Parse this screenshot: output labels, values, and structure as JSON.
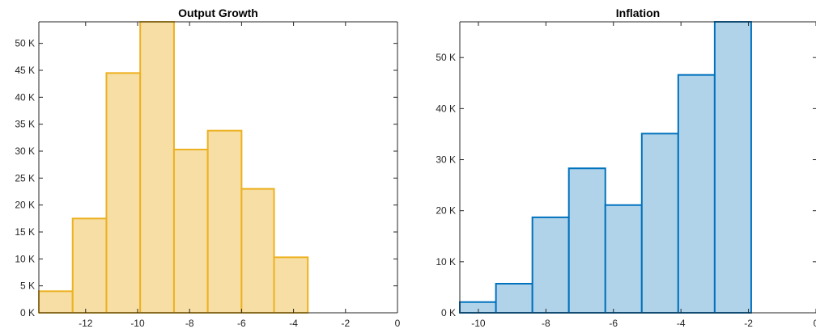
{
  "chart_data": [
    {
      "type": "bar",
      "title": "Output Growth",
      "xlabel": "",
      "ylabel": "",
      "xlim": [
        -13.8,
        0
      ],
      "ylim": [
        0,
        54000
      ],
      "xticks": [
        -12,
        -10,
        -8,
        -6,
        -4,
        -2,
        0
      ],
      "xtick_labels": [
        "-12",
        "-10",
        "-8",
        "-6",
        "-4",
        "-2",
        "0"
      ],
      "yticks": [
        0,
        5000,
        10000,
        15000,
        20000,
        25000,
        30000,
        35000,
        40000,
        45000,
        50000
      ],
      "ytick_labels": [
        "0 K",
        "5 K",
        "10 K",
        "15 K",
        "20 K",
        "25 K",
        "30 K",
        "35 K",
        "40 K",
        "45 K",
        "50 K"
      ],
      "bin_edges": [
        -13.8,
        -12.5,
        -11.2,
        -9.9,
        -8.6,
        -7.3,
        -6.0,
        -4.75,
        -3.45
      ],
      "values": [
        4000,
        17500,
        44500,
        54000,
        30300,
        33800,
        23000,
        10300
      ],
      "colors": {
        "fill": "#f7dea5",
        "edge": "#edb120"
      },
      "grid": false
    },
    {
      "type": "bar",
      "title": "Inflation",
      "xlabel": "",
      "ylabel": "",
      "xlim": [
        -10.55,
        0
      ],
      "ylim": [
        0,
        57000
      ],
      "xticks": [
        -10,
        -8,
        -6,
        -4,
        -2,
        0
      ],
      "xtick_labels": [
        "-10",
        "-8",
        "-6",
        "-4",
        "-2",
        "0"
      ],
      "yticks": [
        0,
        10000,
        20000,
        30000,
        40000,
        50000
      ],
      "ytick_labels": [
        "0 K",
        "10 K",
        "20 K",
        "30 K",
        "40 K",
        "50 K"
      ],
      "bin_edges": [
        -10.55,
        -9.48,
        -8.4,
        -7.32,
        -6.24,
        -5.16,
        -4.08,
        -3.0,
        -1.92
      ],
      "values": [
        2100,
        5700,
        18700,
        28300,
        21100,
        35100,
        46600,
        57000
      ],
      "colors": {
        "fill": "#b1d3ea",
        "edge": "#0072bd"
      },
      "grid": false
    }
  ]
}
